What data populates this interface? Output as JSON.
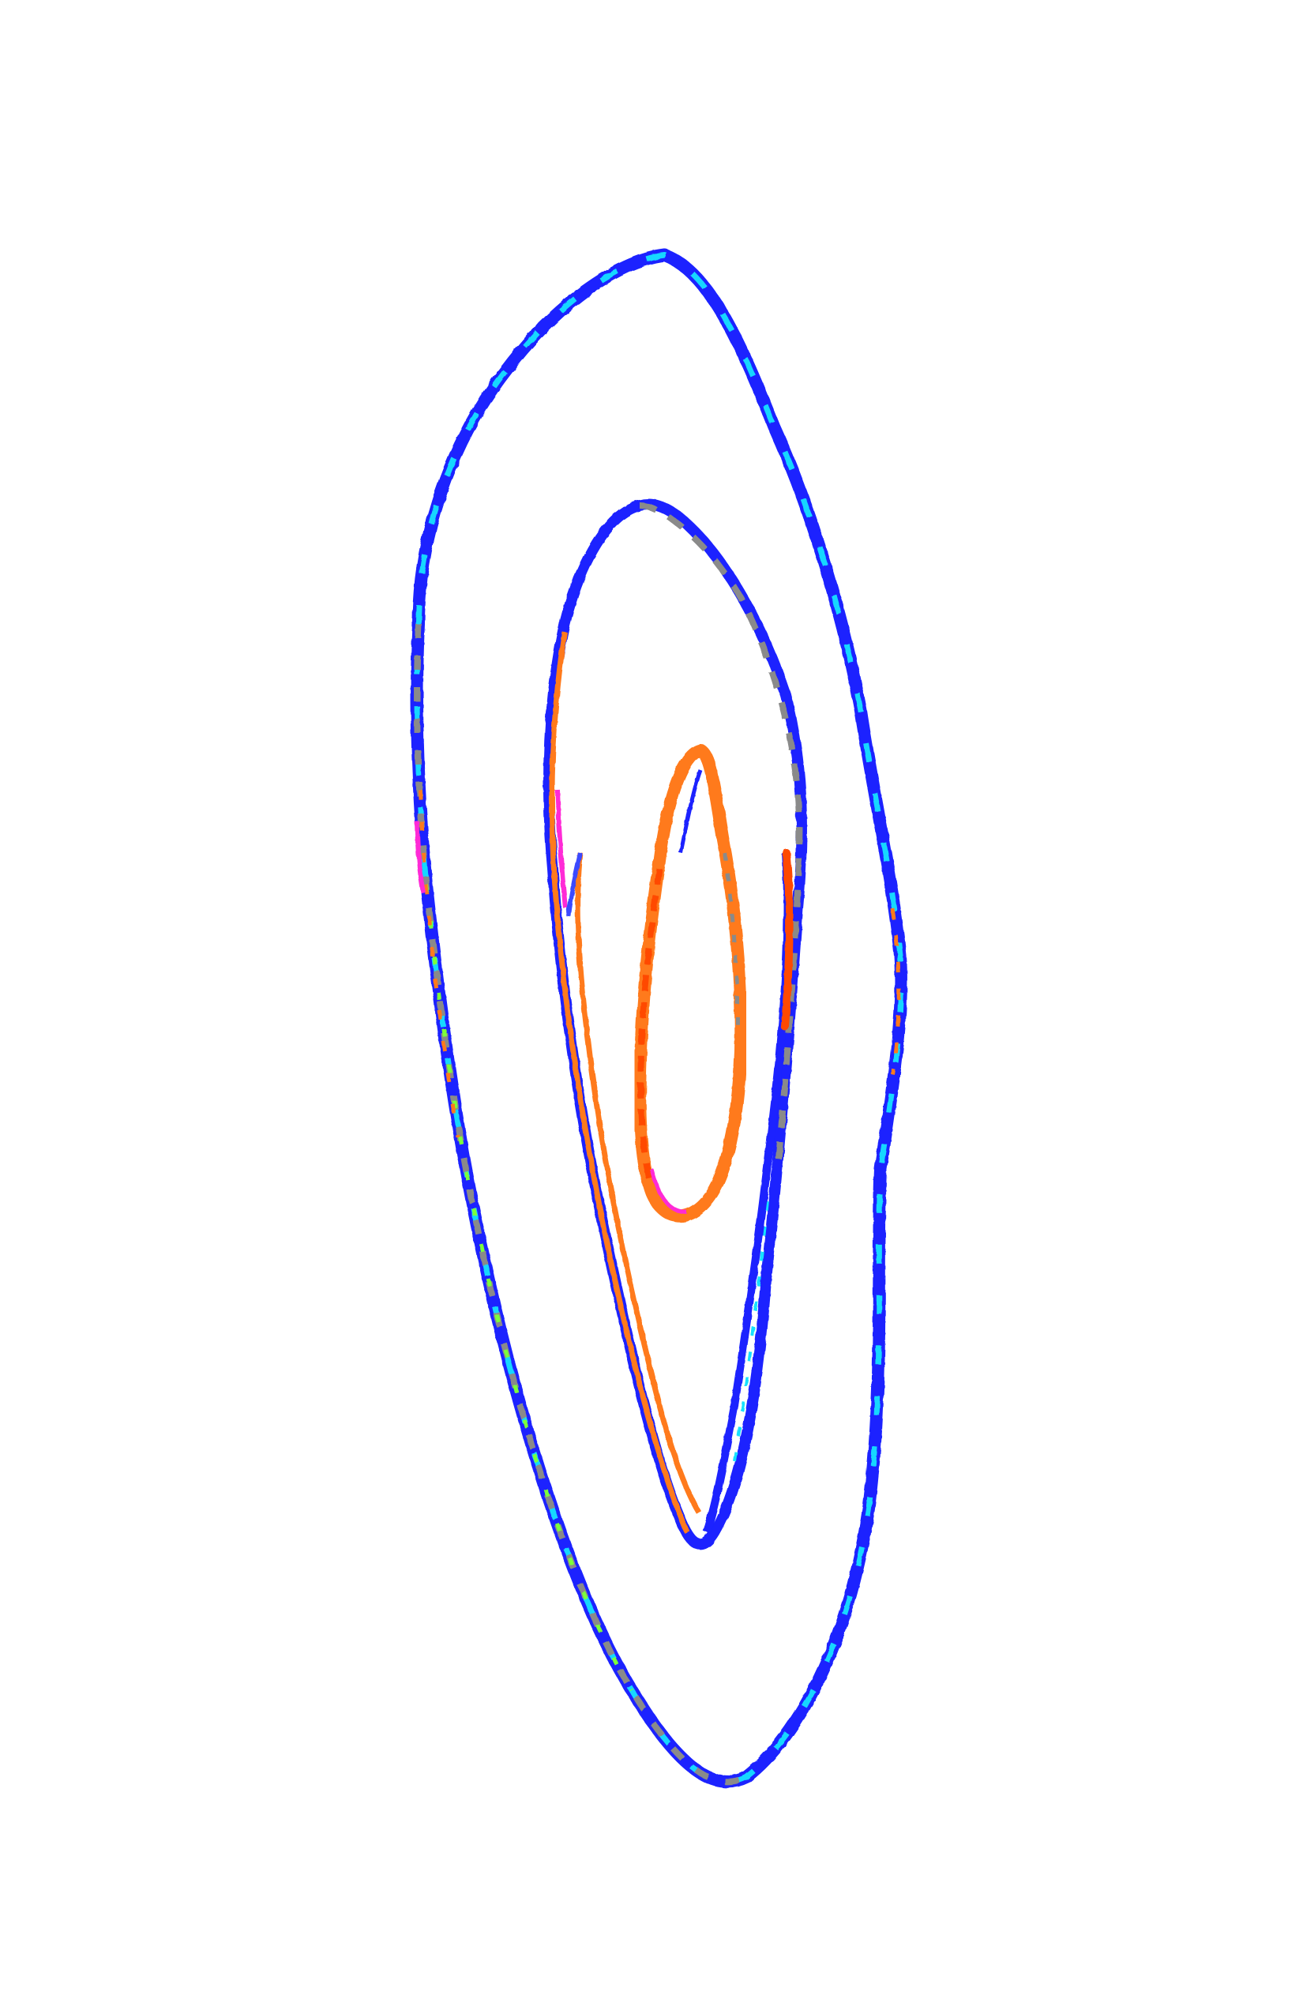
{
  "figure": {
    "subject": "concentric-loop-trace",
    "background_color": "#ffffff",
    "loops": [
      {
        "name": "outer-loop",
        "colors": [
          "#1a22ff",
          "#2f5bff",
          "#19d7ff",
          "#8a8a8a",
          "#7cff3a",
          "#ff7a1a",
          "#ff2bd6"
        ]
      },
      {
        "name": "middle-loop",
        "colors": [
          "#1a22ff",
          "#3b49ff",
          "#8a8a8a",
          "#ff7a1a",
          "#ff2bd6",
          "#18e0ff"
        ]
      },
      {
        "name": "inner-loop",
        "colors": [
          "#ff7a1a",
          "#ff4a00",
          "#ff2bd6",
          "#1a22ff",
          "#8a8a8a"
        ]
      }
    ]
  }
}
